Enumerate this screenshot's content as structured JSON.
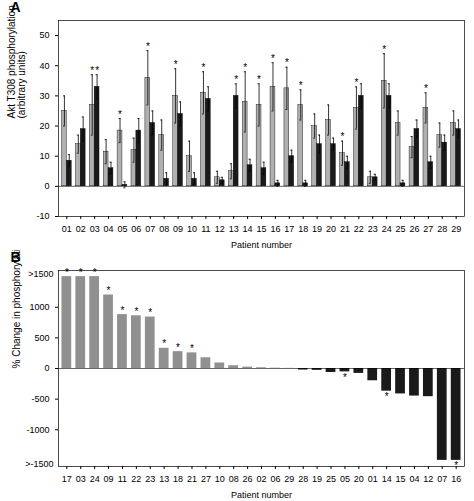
{
  "chart_data": [
    {
      "type": "bar",
      "title": "A",
      "categories": [
        "01",
        "02",
        "03",
        "04",
        "05",
        "06",
        "07",
        "08",
        "09",
        "10",
        "11",
        "12",
        "13",
        "14",
        "15",
        "16",
        "17",
        "18",
        "19",
        "20",
        "21",
        "22",
        "23",
        "24",
        "25",
        "26",
        "27",
        "28",
        "29"
      ],
      "series": [
        {
          "color": "#b0b0b0",
          "values": [
            25,
            14,
            27,
            11.5,
            18.5,
            12,
            36,
            17,
            30,
            10,
            31,
            3,
            5,
            28,
            27,
            33,
            32.5,
            27,
            20,
            22,
            11,
            26,
            3,
            35,
            21,
            13,
            26,
            17,
            21
          ],
          "errors": [
            5,
            3,
            10,
            4,
            4,
            4,
            9,
            5,
            9,
            5,
            7,
            2,
            2.5,
            10,
            7,
            8,
            7,
            5,
            4,
            5,
            4,
            7,
            2,
            9,
            4,
            3.5,
            5,
            4,
            4
          ],
          "significant": [
            false,
            false,
            true,
            false,
            true,
            false,
            true,
            false,
            true,
            false,
            true,
            false,
            false,
            true,
            true,
            true,
            true,
            true,
            false,
            false,
            true,
            true,
            false,
            true,
            false,
            false,
            true,
            false,
            false
          ]
        },
        {
          "color": "#1a1a1a",
          "values": [
            8.5,
            19,
            33,
            6,
            0.5,
            18.5,
            21,
            2.5,
            24,
            2.5,
            29,
            2,
            30,
            7,
            6,
            1,
            10,
            1,
            14,
            14,
            8,
            30,
            3,
            30,
            1,
            19,
            8,
            14.5,
            19
          ],
          "errors": [
            2,
            4,
            4,
            2,
            1,
            4,
            4,
            2,
            4,
            2,
            4,
            1,
            4,
            2,
            2,
            1,
            2,
            1,
            3,
            2,
            2,
            4,
            1,
            4,
            1,
            3,
            2,
            2.5,
            3
          ],
          "significant": [
            false,
            false,
            true,
            false,
            false,
            false,
            false,
            false,
            false,
            false,
            false,
            false,
            true,
            false,
            false,
            false,
            false,
            false,
            false,
            false,
            false,
            false,
            false,
            false,
            false,
            false,
            false,
            false,
            false
          ]
        }
      ],
      "significance_label": "*",
      "xlabel": "Patient number",
      "ylabel": "Akt T308 phosphorylation\n(arbitrary units)",
      "ylim": [
        -10,
        55
      ],
      "yticks": [
        -10,
        0,
        10,
        20,
        30,
        40,
        50
      ]
    },
    {
      "type": "bar",
      "title": "B",
      "categories": [
        "17",
        "03",
        "24",
        "09",
        "11",
        "22",
        "23",
        "13",
        "18",
        "21",
        "27",
        "10",
        "08",
        "26",
        "02",
        "06",
        "29",
        "28",
        "19",
        "25",
        "05",
        "20",
        "01",
        "14",
        "15",
        "04",
        "12",
        "07",
        "16"
      ],
      "values": [
        1500,
        1500,
        1500,
        1200,
        880,
        860,
        840,
        330,
        275,
        255,
        175,
        90,
        45,
        22,
        12,
        5,
        2,
        -25,
        -30,
        -65,
        -55,
        -80,
        -200,
        -370,
        -415,
        -450,
        -460,
        -1500,
        -1500
      ],
      "colors": [
        "#909090",
        "#909090",
        "#909090",
        "#909090",
        "#909090",
        "#909090",
        "#909090",
        "#909090",
        "#909090",
        "#909090",
        "#909090",
        "#909090",
        "#909090",
        "#909090",
        "#909090",
        "#909090",
        "#909090",
        "#1a1a1a",
        "#1a1a1a",
        "#1a1a1a",
        "#1a1a1a",
        "#1a1a1a",
        "#1a1a1a",
        "#1a1a1a",
        "#1a1a1a",
        "#1a1a1a",
        "#1a1a1a",
        "#1a1a1a",
        "#1a1a1a"
      ],
      "significant": [
        true,
        true,
        true,
        true,
        true,
        true,
        true,
        true,
        true,
        true,
        false,
        false,
        false,
        false,
        false,
        false,
        false,
        false,
        false,
        false,
        true,
        false,
        false,
        true,
        false,
        false,
        false,
        false,
        true
      ],
      "significance_label": "*",
      "xlabel": "Patient number",
      "ylabel": "% Change in phosphorylation",
      "ylim": [
        -1600,
        1600
      ],
      "yticks": [
        -1000,
        -500,
        0,
        500,
        1000
      ],
      "annotations": [
        {
          "text": ">1500",
          "y": 1600
        },
        {
          "text": ">-1500",
          "y": -1600
        }
      ]
    }
  ]
}
